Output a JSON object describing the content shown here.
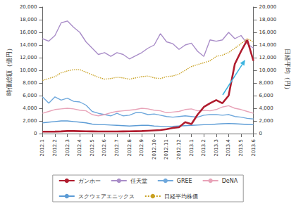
{
  "chart_data": {
    "type": "line",
    "categories": [
      "2012.1",
      null,
      "2012.2",
      null,
      "2012.3",
      null,
      "2012.4",
      null,
      "2012.5",
      null,
      "2012.6",
      null,
      "2012.7",
      null,
      "2012.8",
      null,
      "2012.9",
      null,
      "2012.10",
      null,
      "2012.11",
      null,
      "2012.12",
      null,
      "2013.1",
      null,
      "2013.2",
      null,
      "2013.3",
      null,
      "2013.4",
      null,
      "2013.5",
      null,
      "2013.6"
    ],
    "y_label": "時価総額（億円）",
    "y2_label": "日経平均（円）",
    "ylim": [
      0,
      20000
    ],
    "yticks": [
      0,
      {
        "value": 2000,
        "label": "2,000"
      },
      {
        "value": 4000,
        "label": "4,000"
      },
      {
        "value": 6000,
        "label": "6,000"
      },
      {
        "value": 8000,
        "label": "8,000"
      },
      {
        "value": 10000,
        "label": "10,000"
      },
      {
        "value": 12000,
        "label": "12,000"
      },
      {
        "value": 14000,
        "label": "14,000"
      },
      {
        "value": 16000,
        "label": "16,000"
      },
      {
        "value": 18000,
        "label": "18,000"
      },
      {
        "value": 20000,
        "label": "20,000"
      }
    ],
    "y2lim": [
      0,
      20000
    ],
    "y2ticks": [
      0,
      {
        "value": 2000,
        "label": "2,000"
      },
      {
        "value": 4000,
        "label": "4,000"
      },
      {
        "value": 6000,
        "label": "6,000"
      },
      {
        "value": 8000,
        "label": "8,000"
      },
      {
        "value": 10000,
        "label": "10,000"
      },
      {
        "value": 12000,
        "label": "12,000"
      },
      {
        "value": 14000,
        "label": "14,000"
      },
      {
        "value": 16000,
        "label": "16,000"
      },
      {
        "value": 18000,
        "label": "18,000"
      },
      {
        "value": 20000,
        "label": "20,000"
      }
    ],
    "grid": false,
    "legend": "bottom",
    "series": [
      {
        "name": "ガンホー",
        "color": "#b01c2e",
        "line_style": "solid",
        "values": [
          300,
          300,
          320,
          350,
          400,
          400,
          380,
          360,
          350,
          340,
          330,
          330,
          340,
          350,
          360,
          380,
          400,
          450,
          500,
          550,
          700,
          900,
          1000,
          1800,
          1500,
          3000,
          4200,
          4800,
          5300,
          4800,
          6000,
          11000,
          13000,
          14800,
          11500
        ]
      },
      {
        "name": "任天堂",
        "color": "#a98dc8",
        "line_style": "solid",
        "values": [
          15000,
          14600,
          15500,
          17500,
          17800,
          16800,
          16000,
          14500,
          13500,
          12500,
          12800,
          12200,
          12800,
          12500,
          11800,
          12300,
          12800,
          13500,
          14000,
          15800,
          14500,
          14200,
          13300,
          14000,
          14300,
          13000,
          12200,
          14800,
          14600,
          14800,
          16000,
          15000,
          15500,
          14200,
          13500
        ]
      },
      {
        "name": "GREE",
        "color": "#6fa8dc",
        "line_style": "solid",
        "values": [
          5800,
          4800,
          5800,
          5300,
          5600,
          5100,
          5000,
          4500,
          3500,
          3200,
          3000,
          2800,
          3200,
          2800,
          2900,
          3300,
          3300,
          3000,
          3100,
          2900,
          2700,
          2600,
          2700,
          2800,
          2700,
          2600,
          2900,
          3000,
          3000,
          2900,
          3000,
          2700,
          2600,
          2400,
          2300
        ]
      },
      {
        "name": "DeNA",
        "color": "#e8a3b8",
        "line_style": "solid",
        "values": [
          3200,
          3500,
          3800,
          3900,
          4000,
          3900,
          3700,
          3600,
          3000,
          2800,
          3000,
          3300,
          3500,
          3600,
          3700,
          3800,
          4000,
          3900,
          3700,
          3600,
          3300,
          3400,
          3500,
          3800,
          3900,
          3600,
          3700,
          3600,
          3800,
          4200,
          4400,
          4000,
          3800,
          3500,
          3200
        ]
      },
      {
        "name": "スクウェアエニックス",
        "color": "#5b9bd5",
        "line_style": "solid",
        "values": [
          1700,
          1800,
          1900,
          2000,
          2000,
          1900,
          1800,
          1700,
          1500,
          1400,
          1400,
          1350,
          1300,
          1250,
          1200,
          1250,
          1300,
          1300,
          1200,
          1150,
          1100,
          1150,
          1200,
          1250,
          1300,
          1350,
          1400,
          1400,
          1500,
          1550,
          1600,
          1550,
          1500,
          1450,
          1400
        ]
      },
      {
        "name": "日経平均株価",
        "color": "#c8a020",
        "line_style": "dotted",
        "axis": "y2",
        "values": [
          8400,
          8700,
          9000,
          9600,
          9900,
          10100,
          10100,
          9700,
          9300,
          8900,
          8600,
          8700,
          8900,
          8800,
          8600,
          8800,
          9000,
          9100,
          8800,
          8700,
          9000,
          9100,
          9400,
          10000,
          10600,
          10900,
          11200,
          11500,
          12200,
          12400,
          12800,
          13500,
          14200,
          15000,
          14500
        ]
      }
    ]
  }
}
